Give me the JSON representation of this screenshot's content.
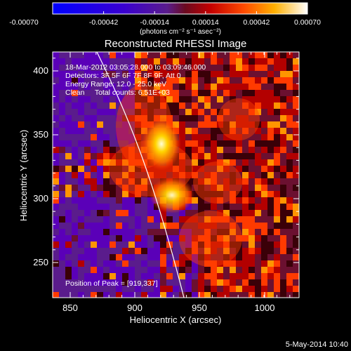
{
  "colorbar": {
    "ticks": [
      "-0.00070",
      "-0.00042",
      "-0.00014",
      "0.00014",
      "0.00042",
      "0.00070"
    ],
    "units": "(photons cm⁻² s⁻¹ asec⁻²)"
  },
  "plot": {
    "title": "Reconstructed RHESSI Image",
    "xlabel": "Heliocentric X (arcsec)",
    "ylabel": "Heliocentric Y (arcsec)",
    "xticks": [
      "850",
      "900",
      "950",
      "1000"
    ],
    "yticks": [
      "250",
      "300",
      "350",
      "400"
    ],
    "info": [
      "18-Mar-2012 03:05:28.000 to 03:09:46.000",
      "Detectors: 3F 5F 6F 7F 8F 9F, Att 0",
      "Energy Range: 12.0 - 25.0 keV",
      "Clean     Total counts: 6.51E+03"
    ],
    "peak_label": "Position of Peak = [919,337]"
  },
  "footer": {
    "date": "5-May-2014 10:40"
  },
  "colors": {
    "cmap": [
      "#0000ff",
      "#5a00b8",
      "#5a1c8c",
      "#6b1030",
      "#b30000",
      "#ff3a00",
      "#ff9500",
      "#ffd800",
      "#ffffff"
    ]
  }
}
